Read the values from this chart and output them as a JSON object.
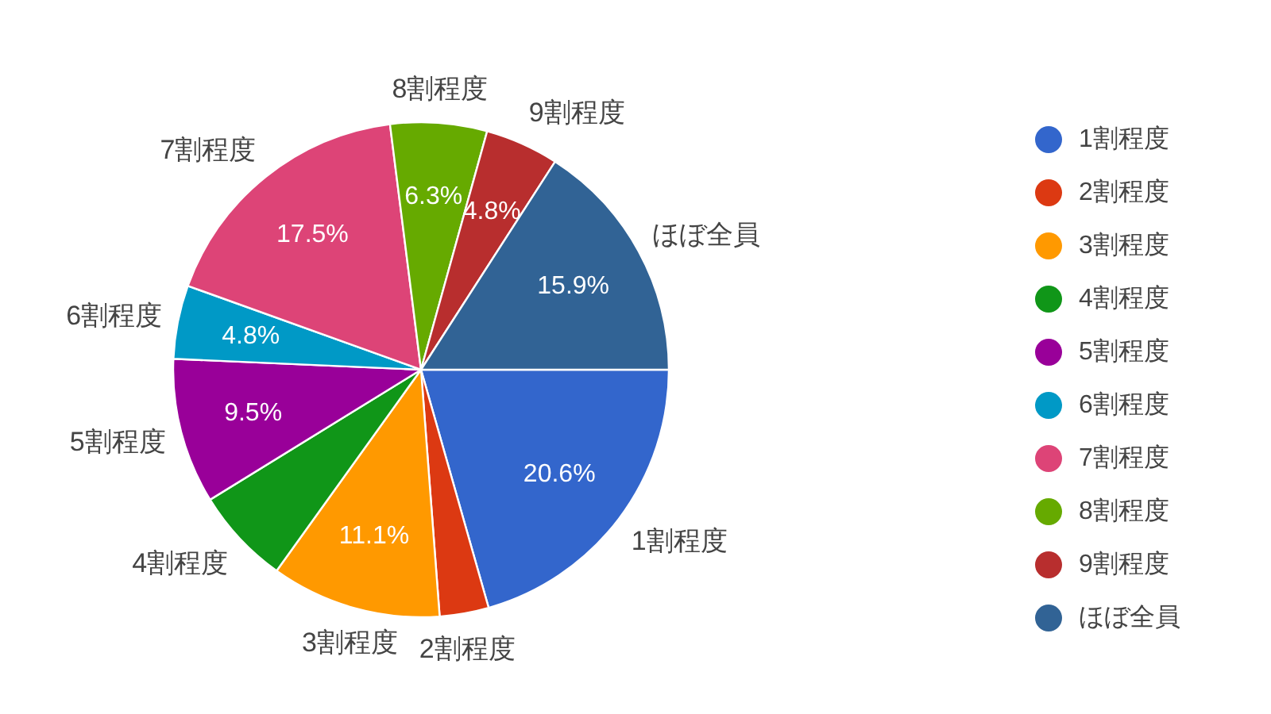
{
  "chart_data": {
    "type": "pie",
    "categories": [
      "1割程度",
      "2割程度",
      "3割程度",
      "4割程度",
      "5割程度",
      "6割程度",
      "7割程度",
      "8割程度",
      "9割程度",
      "ほぼ全員"
    ],
    "values": [
      20.6,
      3.2,
      11.1,
      6.3,
      9.5,
      4.8,
      17.5,
      6.3,
      4.8,
      15.9
    ],
    "colors": [
      "#3366cc",
      "#dc3912",
      "#ff9900",
      "#109618",
      "#990099",
      "#0099c6",
      "#dd4477",
      "#66aa00",
      "#b82e2e",
      "#316395"
    ],
    "value_labels": [
      "20.6%",
      null,
      "11.1%",
      null,
      "9.5%",
      "4.8%",
      "17.5%",
      "6.3%",
      "4.8%",
      "15.9%"
    ],
    "legend": "right"
  }
}
